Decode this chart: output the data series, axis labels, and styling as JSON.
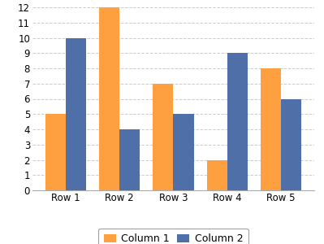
{
  "categories": [
    "Row 1",
    "Row 2",
    "Row 3",
    "Row 4",
    "Row 5"
  ],
  "series": [
    {
      "label": "Column 1",
      "values": [
        5,
        12,
        7,
        2,
        8
      ],
      "color": "#FFA040"
    },
    {
      "label": "Column 2",
      "values": [
        10,
        4,
        5,
        9,
        6
      ],
      "color": "#4E6FA8"
    }
  ],
  "ylim": [
    0,
    12
  ],
  "yticks": [
    0,
    1,
    2,
    3,
    4,
    5,
    6,
    7,
    8,
    9,
    10,
    11,
    12
  ],
  "bar_width": 0.38,
  "background_color": "#FFFFFF",
  "legend_ncol": 2,
  "grid_color": "#CCCCCC",
  "tick_fontsize": 8.5,
  "legend_fontsize": 9
}
